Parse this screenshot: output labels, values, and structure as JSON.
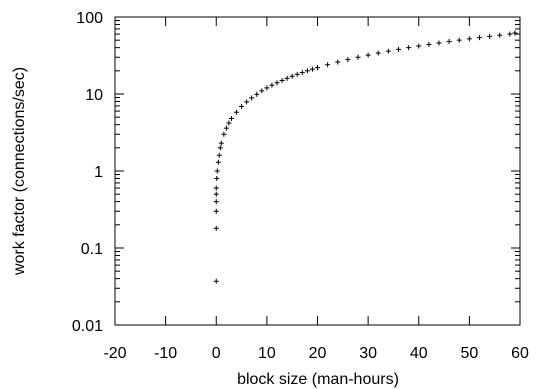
{
  "chart_data": {
    "type": "scatter",
    "title": "",
    "xlabel": "block size (man-hours)",
    "ylabel": "work factor (connections/sec)",
    "xlim": [
      -20,
      60
    ],
    "ylim": [
      0.01,
      100
    ],
    "yscale": "log",
    "x_ticks": [
      -20,
      -10,
      0,
      10,
      20,
      30,
      40,
      50,
      60
    ],
    "x_tick_labels": [
      "-20",
      "-10",
      "0",
      "10",
      "20",
      "30",
      "40",
      "50",
      "60"
    ],
    "y_ticks": [
      0.01,
      0.1,
      1,
      10,
      100
    ],
    "y_tick_labels": [
      "0.01",
      "0.1",
      "1",
      "10",
      "100"
    ],
    "grid": false,
    "legend": "none",
    "marker": "+",
    "color": "#000000",
    "series": [
      {
        "x": [
          0,
          0,
          0,
          0,
          0,
          0,
          0.1,
          0.2,
          0.4,
          0.6,
          0.8,
          1,
          1.5,
          2,
          2.5,
          3,
          4,
          5,
          6,
          7,
          8,
          9,
          10,
          11,
          12,
          13,
          14,
          15,
          16,
          17,
          18,
          19,
          20,
          22,
          24,
          26,
          28,
          30,
          32,
          34,
          36,
          38,
          40,
          42,
          44,
          46,
          48,
          50,
          52,
          54,
          56,
          58,
          59
        ],
        "y": [
          0.037,
          0.18,
          0.3,
          0.4,
          0.5,
          0.6,
          0.8,
          1,
          1.3,
          1.6,
          2,
          2.3,
          3,
          3.6,
          4.2,
          4.8,
          5.8,
          6.9,
          7.9,
          8.9,
          9.9,
          11,
          12,
          13,
          14,
          15,
          16,
          17,
          18,
          19,
          20,
          21,
          22,
          24,
          26,
          28,
          30,
          32,
          34,
          36,
          38,
          40,
          42,
          44,
          46,
          48,
          50,
          52,
          54,
          56,
          58,
          60,
          62
        ]
      }
    ]
  }
}
